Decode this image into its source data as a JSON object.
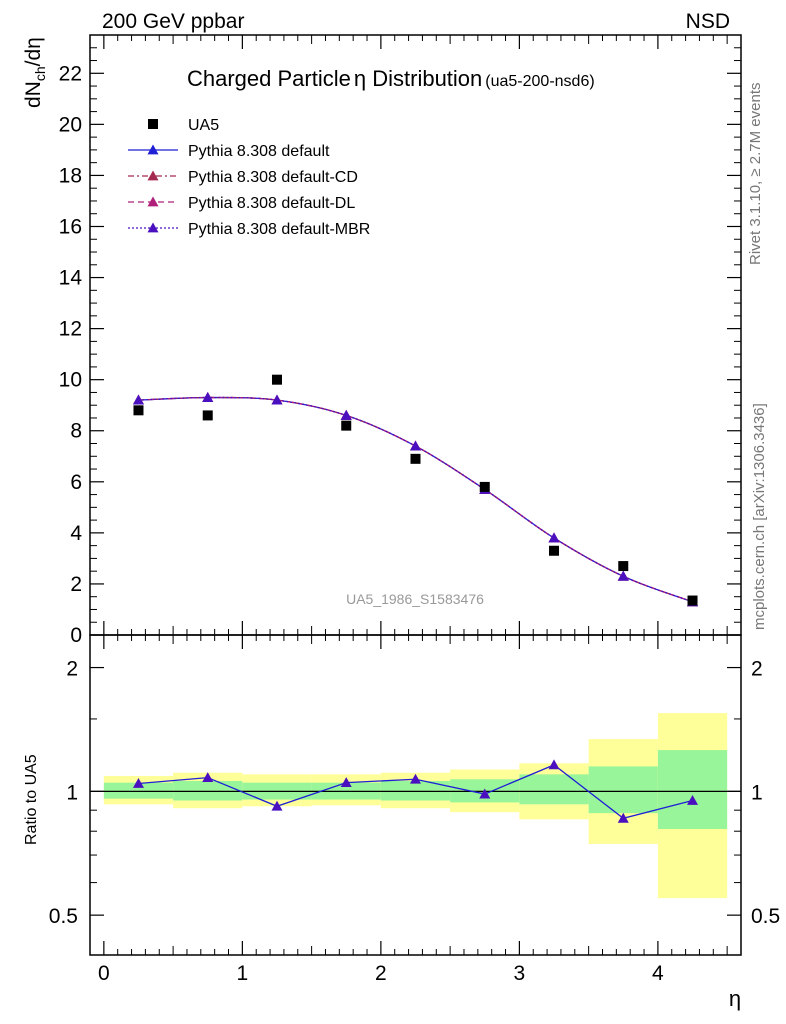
{
  "header": {
    "left": "200 GeV ppbar",
    "right": "NSD"
  },
  "side": {
    "rivet": "Rivet 3.1.10, ≥ 2.7M events",
    "mcplots": "mcplots.cern.ch [arXiv:1306.3436]"
  },
  "chart_data": [
    {
      "type": "line",
      "title": "Charged Particle",
      "title_symbol": "η",
      "title_rest": " Distribution",
      "title_tag": "(ua5-200-nsd6)",
      "ylabel_main": "dN",
      "ylabel_sub": "ch",
      "ylabel_tail": "/dη",
      "watermark": "UA5_1986_S1583476",
      "xlim": [
        -0.1,
        4.6
      ],
      "ylim": [
        0,
        23.5
      ],
      "yticks": [
        0,
        2,
        4,
        6,
        8,
        10,
        12,
        14,
        16,
        18,
        20,
        22
      ],
      "grid": false,
      "legend_position": "top-left",
      "x": [
        0.25,
        0.75,
        1.25,
        1.75,
        2.25,
        2.75,
        3.25,
        3.75,
        4.25
      ],
      "data_series": {
        "name": "UA5",
        "color": "#000000",
        "values": [
          8.8,
          8.6,
          10.0,
          8.2,
          6.9,
          5.8,
          3.3,
          2.7,
          1.35
        ]
      },
      "series": [
        {
          "name": "Pythia 8.308 default",
          "color": "#1f1fd6",
          "dash": "solid",
          "values": [
            9.2,
            9.3,
            9.2,
            8.6,
            7.4,
            5.7,
            3.8,
            2.3,
            1.3
          ]
        },
        {
          "name": "Pythia 8.308 default-CD",
          "color": "#a52a50",
          "dash": "dashdot",
          "values": [
            9.2,
            9.3,
            9.2,
            8.6,
            7.4,
            5.7,
            3.8,
            2.3,
            1.3
          ]
        },
        {
          "name": "Pythia 8.308 default-DL",
          "color": "#b0207a",
          "dash": "dash",
          "values": [
            9.2,
            9.3,
            9.2,
            8.6,
            7.4,
            5.7,
            3.8,
            2.3,
            1.3
          ]
        },
        {
          "name": "Pythia 8.308 default-MBR",
          "color": "#4a10c0",
          "dash": "dot",
          "values": [
            9.2,
            9.3,
            9.2,
            8.6,
            7.4,
            5.7,
            3.8,
            2.3,
            1.3
          ]
        }
      ]
    },
    {
      "type": "line",
      "ylabel": "Ratio to UA5",
      "xlabel": "η",
      "xticks": [
        0,
        1,
        2,
        3,
        4
      ],
      "ylim": [
        0.4,
        2.4
      ],
      "yticks": [
        0.5,
        1,
        2
      ],
      "log_scale_y": true,
      "reference": 1,
      "bins": [
        [
          0.0,
          0.5
        ],
        [
          0.5,
          1.0
        ],
        [
          1.0,
          1.5
        ],
        [
          1.5,
          2.0
        ],
        [
          2.0,
          2.5
        ],
        [
          2.5,
          3.0
        ],
        [
          3.0,
          3.5
        ],
        [
          3.5,
          4.0
        ],
        [
          4.0,
          4.5
        ]
      ],
      "band_inner": [
        [
          0.96,
          1.05
        ],
        [
          0.95,
          1.06
        ],
        [
          0.955,
          1.05
        ],
        [
          0.955,
          1.05
        ],
        [
          0.95,
          1.06
        ],
        [
          0.94,
          1.07
        ],
        [
          0.93,
          1.1
        ],
        [
          0.885,
          1.15
        ],
        [
          0.81,
          1.26
        ]
      ],
      "band_outer": [
        [
          0.93,
          1.09
        ],
        [
          0.91,
          1.11
        ],
        [
          0.92,
          1.1
        ],
        [
          0.925,
          1.1
        ],
        [
          0.91,
          1.11
        ],
        [
          0.89,
          1.13
        ],
        [
          0.855,
          1.17
        ],
        [
          0.745,
          1.34
        ],
        [
          0.55,
          1.55
        ]
      ],
      "inner_color": "#99f599",
      "outer_color": "#ffff99",
      "ratio_values": [
        1.045,
        1.08,
        0.92,
        1.05,
        1.07,
        0.985,
        1.16,
        0.86,
        0.95
      ]
    }
  ]
}
